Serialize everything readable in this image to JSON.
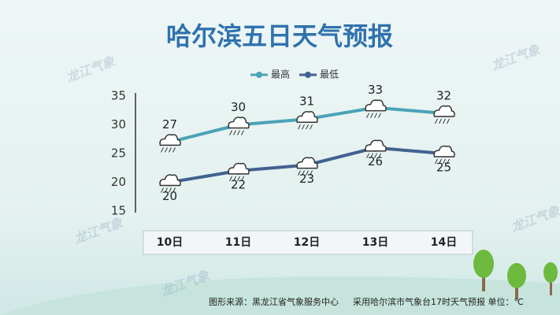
{
  "chart_data": {
    "type": "line",
    "title": "哈尔滨五日天气预报",
    "categories": [
      "10日",
      "11日",
      "12日",
      "13日",
      "14日"
    ],
    "series": [
      {
        "name": "最高",
        "color": "#4ba3b6",
        "values": [
          27,
          30,
          31,
          33,
          32
        ]
      },
      {
        "name": "最低",
        "color": "#41628f",
        "values": [
          20,
          22,
          23,
          26,
          25
        ]
      }
    ],
    "ylim": [
      15,
      35
    ],
    "yticks": [
      15,
      20,
      25,
      30,
      35
    ],
    "grid": false,
    "legend": "top",
    "watermark": "龙江气象",
    "source": "图形来源：黑龙江省气象服务中心",
    "note": "采用哈尔滨市气象台17时天气预报 单位：℃"
  }
}
